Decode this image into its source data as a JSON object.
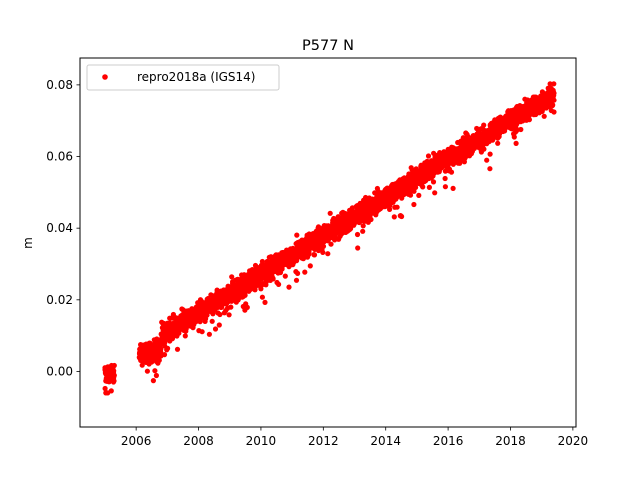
{
  "chart_data": {
    "type": "scatter",
    "title": "P577 N",
    "xlabel": "",
    "ylabel": "m",
    "xlim": [
      2004.2,
      2020.1
    ],
    "ylim": [
      -0.0155,
      0.0875
    ],
    "xticks": [
      2006,
      2008,
      2010,
      2012,
      2014,
      2016,
      2018,
      2020
    ],
    "yticks": [
      0.0,
      0.02,
      0.04,
      0.06,
      0.08
    ],
    "ytick_labels": [
      "0.00",
      "0.02",
      "0.04",
      "0.06",
      "0.08"
    ],
    "grid": false,
    "legend": {
      "position": "top-left",
      "entries": [
        "repro2018a (IGS14)"
      ]
    },
    "marker_color": "#ff0000",
    "series": [
      {
        "name": "repro2018a (IGS14)",
        "trend": {
          "segments": [
            {
              "x_start": 2005.0,
              "x_end": 2005.3,
              "y_start": -0.001,
              "y_end": 0.0
            },
            {
              "x_start": 2006.1,
              "x_end": 2006.8,
              "y_start": 0.005,
              "y_end": 0.006
            },
            {
              "x_start": 2006.8,
              "x_end": 2019.4,
              "y_start": 0.01,
              "y_end": 0.0775
            }
          ],
          "spread": 0.003,
          "approx_points": 3900
        }
      }
    ]
  }
}
